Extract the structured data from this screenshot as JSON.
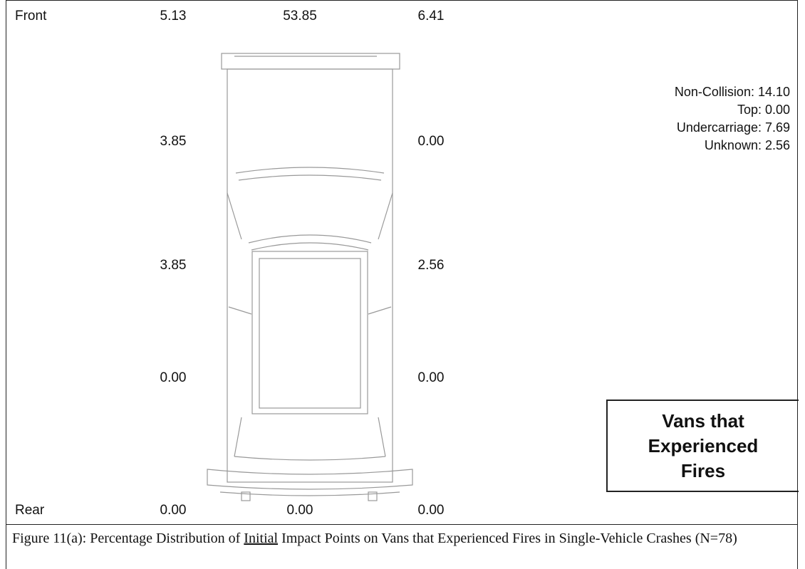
{
  "labels": {
    "front": "Front",
    "rear": "Rear"
  },
  "front_row": [
    "5.13",
    "53.85",
    "6.41"
  ],
  "left_side": [
    "3.85",
    "3.85",
    "0.00"
  ],
  "right_side": [
    "0.00",
    "2.56",
    "0.00"
  ],
  "rear_row": [
    "0.00",
    "0.00",
    "0.00"
  ],
  "other": [
    "Non-Collision: 14.10",
    "Top: 0.00",
    "Undercarriage: 7.69",
    "Unknown: 2.56"
  ],
  "box_title": [
    "Vans that",
    "Experienced",
    "Fires"
  ],
  "caption": {
    "before": "Figure 11(a): Percentage Distribution of ",
    "emphasis": "Initial",
    "after": " Impact Points on Vans that Experienced Fires in Single-Vehicle Crashes (N=78)"
  }
}
